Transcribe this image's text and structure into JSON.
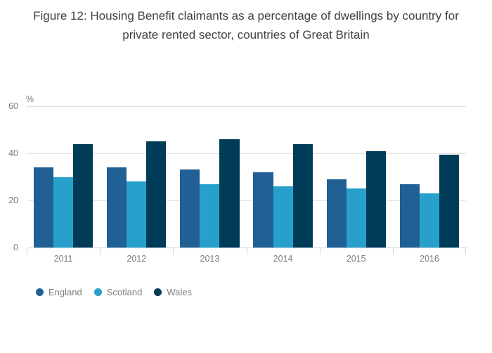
{
  "chart_data": {
    "type": "bar",
    "title": "Figure 12: Housing Benefit claimants as a percentage of dwellings by country for private rented sector, countries of Great Britain",
    "categories": [
      "2011",
      "2012",
      "2013",
      "2014",
      "2015",
      "2016"
    ],
    "series": [
      {
        "name": "England",
        "color": "#206095",
        "values": [
          34,
          34,
          33,
          32,
          29,
          27
        ]
      },
      {
        "name": "Scotland",
        "color": "#27a0cc",
        "values": [
          30,
          28,
          27,
          26,
          25,
          23
        ]
      },
      {
        "name": "Wales",
        "color": "#003c57",
        "values": [
          44,
          45,
          46,
          44,
          41,
          39.5
        ]
      }
    ],
    "xlabel": "",
    "ylabel": "%",
    "ylim": [
      0,
      60
    ],
    "yticks": [
      0,
      20,
      40,
      60
    ],
    "grid": true,
    "legend_position": "bottom-left",
    "title_color": "#414042",
    "axis_line_color": "#c9d7e2",
    "gridline_color": "#e0e0e0",
    "tick_text_color": "#7d7d7d"
  }
}
